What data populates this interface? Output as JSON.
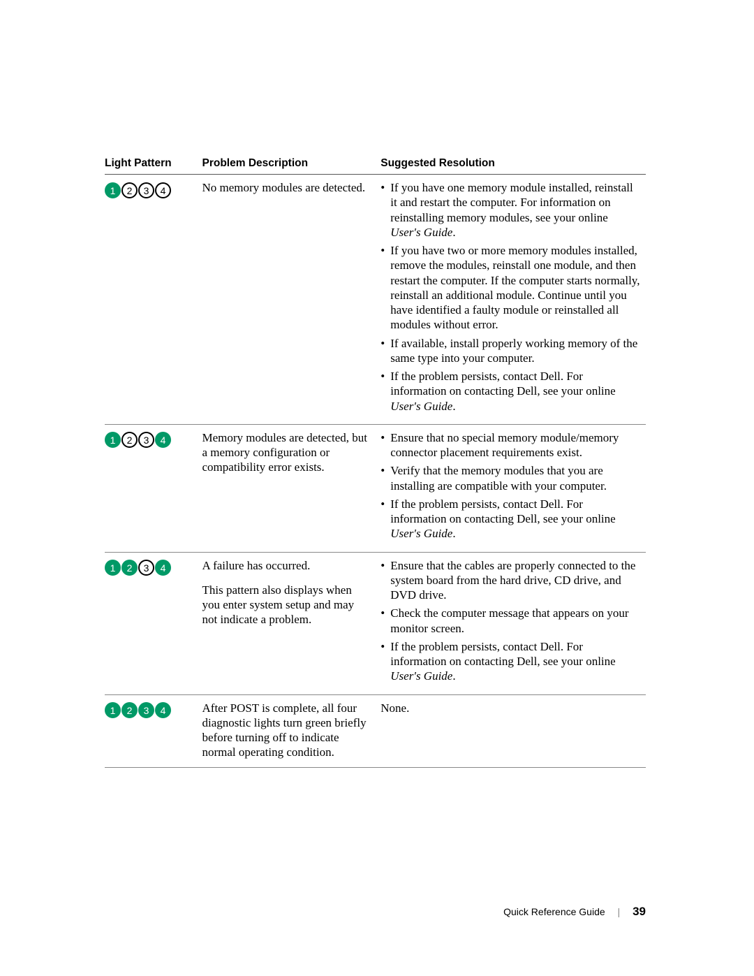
{
  "colors": {
    "light_on_bg": "#009966",
    "light_on_text": "#ffffff",
    "light_off_bg": "#ffffff",
    "light_off_text": "#000000",
    "light_border": "#000000",
    "rule": "#888888",
    "header_rule": "#555555",
    "page_bg": "#ffffff",
    "text": "#000000"
  },
  "typography": {
    "header_font": "Arial",
    "header_size_pt": 12,
    "body_font": "Georgia",
    "body_size_pt": 13,
    "footer_font": "Arial",
    "footer_size_pt": 11
  },
  "headers": {
    "pattern": "Light Pattern",
    "problem": "Problem Description",
    "resolution": "Suggested Resolution"
  },
  "light_labels": [
    "1",
    "2",
    "3",
    "4"
  ],
  "rows": [
    {
      "lights_on": [
        true,
        false,
        false,
        false
      ],
      "problem_paragraphs": [
        "No memory modules are detected."
      ],
      "resolution_type": "list",
      "resolution_items": [
        [
          {
            "t": "If you have one memory module installed, reinstall it and restart the computer. For information on reinstalling memory modules, see your online "
          },
          {
            "t": "User's Guide",
            "italic": true
          },
          {
            "t": "."
          }
        ],
        [
          {
            "t": "If you have two or more memory modules installed, remove the modules, reinstall one module, and then restart the computer. If the computer starts normally, reinstall an additional module. Continue until you have identified a faulty module or reinstalled all modules without error."
          }
        ],
        [
          {
            "t": "If available, install properly working memory of the same type into your computer."
          }
        ],
        [
          {
            "t": "If the problem persists, contact Dell. For information on contacting Dell, see your online "
          },
          {
            "t": "User's Guide",
            "italic": true
          },
          {
            "t": "."
          }
        ]
      ]
    },
    {
      "lights_on": [
        true,
        false,
        false,
        true
      ],
      "problem_paragraphs": [
        "Memory modules are detected, but a memory configuration or compatibility error exists."
      ],
      "resolution_type": "list",
      "resolution_items": [
        [
          {
            "t": "Ensure that no special memory module/memory connector placement requirements exist."
          }
        ],
        [
          {
            "t": "Verify that the memory modules that you are installing are compatible with your computer."
          }
        ],
        [
          {
            "t": "If the problem persists, contact Dell. For information on contacting Dell, see your online "
          },
          {
            "t": "User's Guide",
            "italic": true
          },
          {
            "t": "."
          }
        ]
      ]
    },
    {
      "lights_on": [
        true,
        true,
        false,
        true
      ],
      "problem_paragraphs": [
        "A failure has occurred.",
        "This pattern also displays when you enter system setup and may not indicate a problem."
      ],
      "resolution_type": "list",
      "resolution_items": [
        [
          {
            "t": "Ensure that the cables are properly connected to the system board from the hard drive, CD drive, and DVD drive."
          }
        ],
        [
          {
            "t": "Check the computer message that appears on your monitor screen."
          }
        ],
        [
          {
            "t": "If the problem persists, contact Dell. For information on contacting Dell, see your online "
          },
          {
            "t": "User's Guide",
            "italic": true
          },
          {
            "t": "."
          }
        ]
      ]
    },
    {
      "lights_on": [
        true,
        true,
        true,
        true
      ],
      "problem_paragraphs": [
        "After POST is complete, all four diagnostic lights turn green briefly before turning off to indicate normal operating condition."
      ],
      "resolution_type": "plain",
      "resolution_plain": "None."
    }
  ],
  "footer": {
    "title": "Quick Reference Guide",
    "page": "39"
  }
}
